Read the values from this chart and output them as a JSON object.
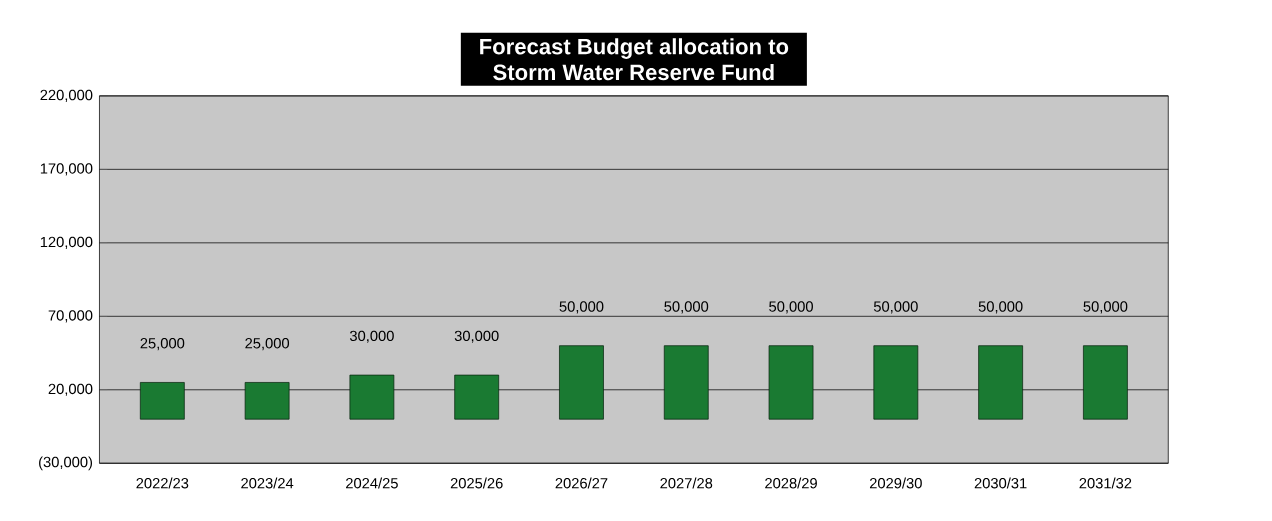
{
  "chart_data": {
    "type": "bar",
    "title": "Forecast Budget allocation to Storm Water Reserve Fund",
    "categories": [
      "2022/23",
      "2023/24",
      "2024/25",
      "2025/26",
      "2026/27",
      "2027/28",
      "2028/29",
      "2029/30",
      "2030/31",
      "2031/32"
    ],
    "values": [
      25000,
      25000,
      30000,
      30000,
      50000,
      50000,
      50000,
      50000,
      50000,
      50000
    ],
    "color": "#1a7a32",
    "ylim": [
      -30000,
      220000
    ],
    "yticks": [
      {
        "value": -30000,
        "label": "(30,000)"
      },
      {
        "value": 20000,
        "label": "20,000"
      },
      {
        "value": 70000,
        "label": "70,000"
      },
      {
        "value": 120000,
        "label": "120,000"
      },
      {
        "value": 170000,
        "label": "170,000"
      },
      {
        "value": 220000,
        "label": "220,000"
      }
    ],
    "grid": "y",
    "value_labels": [
      "25,000",
      "25,000",
      "30,000",
      "30,000",
      "50,000",
      "50,000",
      "50,000",
      "50,000",
      "50,000",
      "50,000"
    ]
  }
}
